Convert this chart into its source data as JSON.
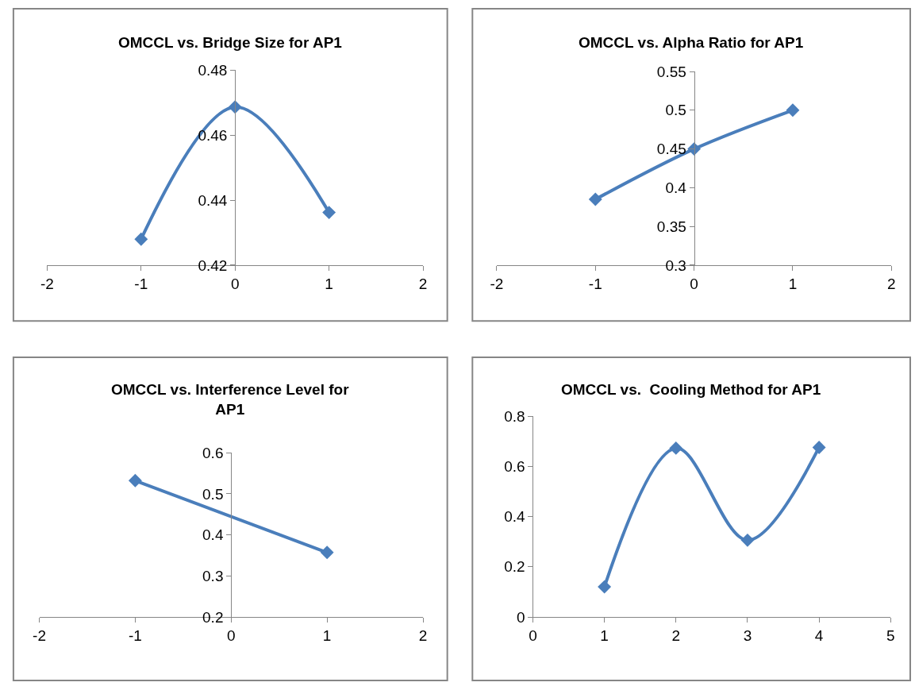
{
  "chart_data": [
    {
      "type": "line",
      "title": "OMCCL vs. Bridge Size for AP1",
      "x": [
        -1,
        0,
        1
      ],
      "values": [
        0.428,
        0.4686,
        0.4362
      ],
      "color": "#4a7ebb",
      "marker": "diamond",
      "xlim": [
        -2,
        2
      ],
      "xticks": [
        -2,
        -1,
        0,
        1,
        2
      ],
      "ylim": [
        0.42,
        0.48
      ],
      "yticks": [
        0.42,
        0.44,
        0.46,
        0.48
      ]
    },
    {
      "type": "line",
      "title": "OMCCL vs. Alpha Ratio for AP1",
      "x": [
        -1,
        0,
        1
      ],
      "values": [
        0.385,
        0.45,
        0.5
      ],
      "color": "#4a7ebb",
      "marker": "diamond",
      "xlim": [
        -2,
        2
      ],
      "xticks": [
        -2,
        -1,
        0,
        1,
        2
      ],
      "ylim": [
        0.3,
        0.55
      ],
      "yticks": [
        0.3,
        0.35,
        0.4,
        0.45,
        0.5,
        0.55
      ]
    },
    {
      "type": "line",
      "title": "OMCCL vs. Interference Level for AP1",
      "x": [
        -1,
        1
      ],
      "values": [
        0.532,
        0.357
      ],
      "color": "#4a7ebb",
      "marker": "diamond",
      "xlim": [
        -2,
        2
      ],
      "xticks": [
        -2,
        -1,
        0,
        1,
        2
      ],
      "ylim": [
        0.2,
        0.6
      ],
      "yticks": [
        0.2,
        0.3,
        0.4,
        0.5,
        0.6
      ]
    },
    {
      "type": "line",
      "title": "OMCCL vs.  Cooling Method for AP1",
      "x": [
        1,
        2,
        3,
        4
      ],
      "values": [
        0.12,
        0.673,
        0.306,
        0.676
      ],
      "color": "#4a7ebb",
      "marker": "diamond",
      "xlim": [
        0,
        5
      ],
      "xticks": [
        0,
        1,
        2,
        3,
        4,
        5
      ],
      "ylim": [
        0,
        0.8
      ],
      "yticks": [
        0,
        0.2,
        0.4,
        0.6,
        0.8
      ]
    }
  ]
}
